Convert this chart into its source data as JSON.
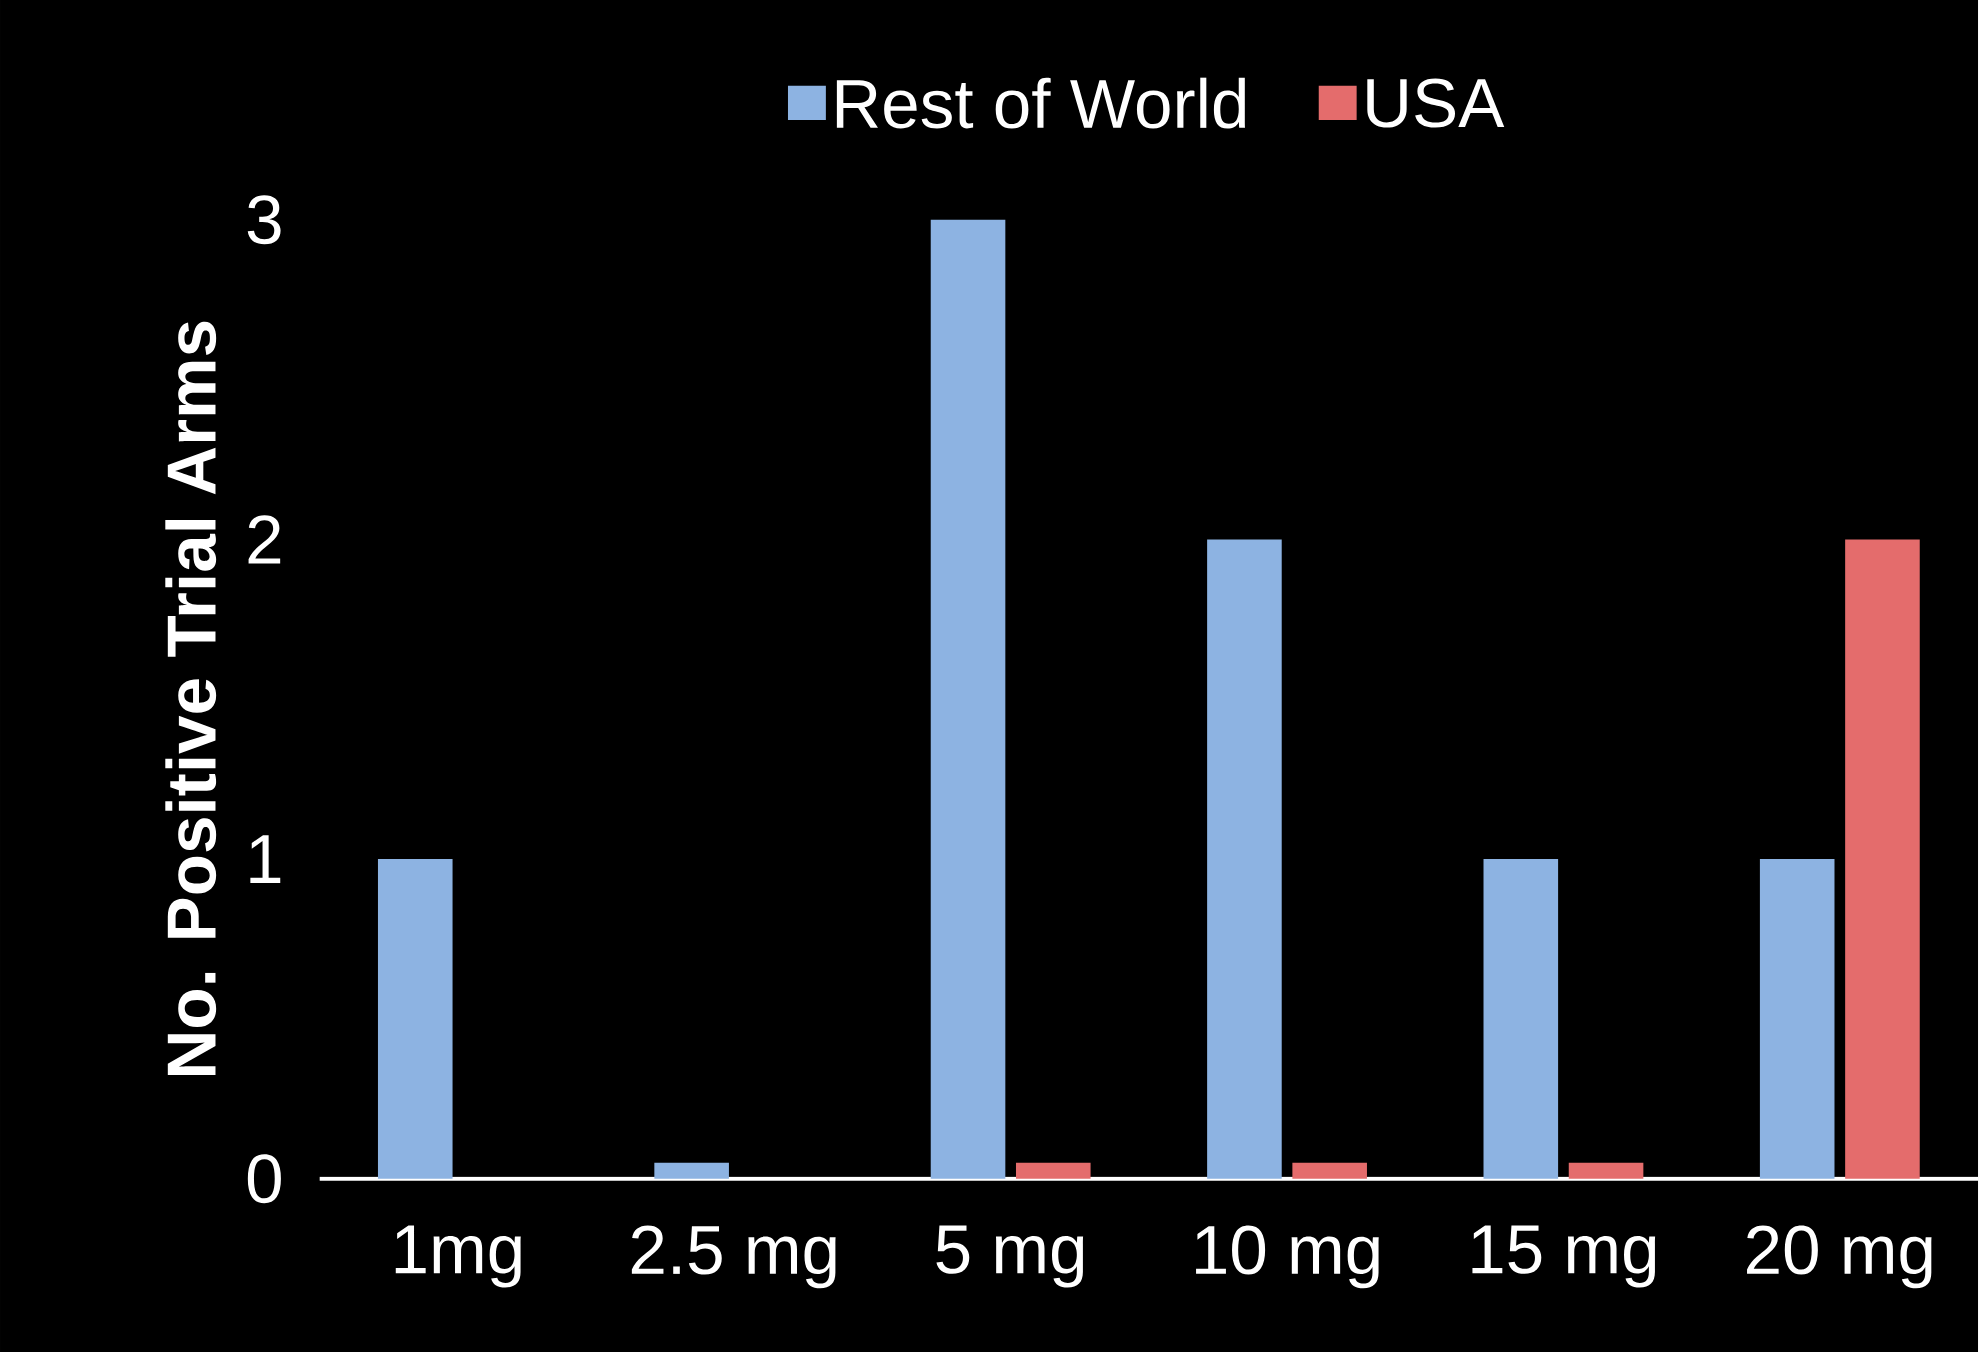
{
  "chart_data": {
    "type": "bar",
    "categories": [
      "1mg",
      "2.5 mg",
      "5 mg",
      "10 mg",
      "15 mg",
      "20 mg"
    ],
    "series": [
      {
        "name": "Rest of World",
        "color": "#8db3e2",
        "values": [
          1,
          0.05,
          3,
          2,
          1,
          1
        ]
      },
      {
        "name": "USA",
        "color": "#e46c6c",
        "values": [
          null,
          null,
          0.05,
          0.05,
          0.05,
          2
        ]
      }
    ],
    "ylabel": "No. Positive  Trial Arms",
    "ylim": [
      0,
      3
    ],
    "yticks": [
      0,
      1,
      2,
      3
    ],
    "legend": "top",
    "grid": false
  }
}
